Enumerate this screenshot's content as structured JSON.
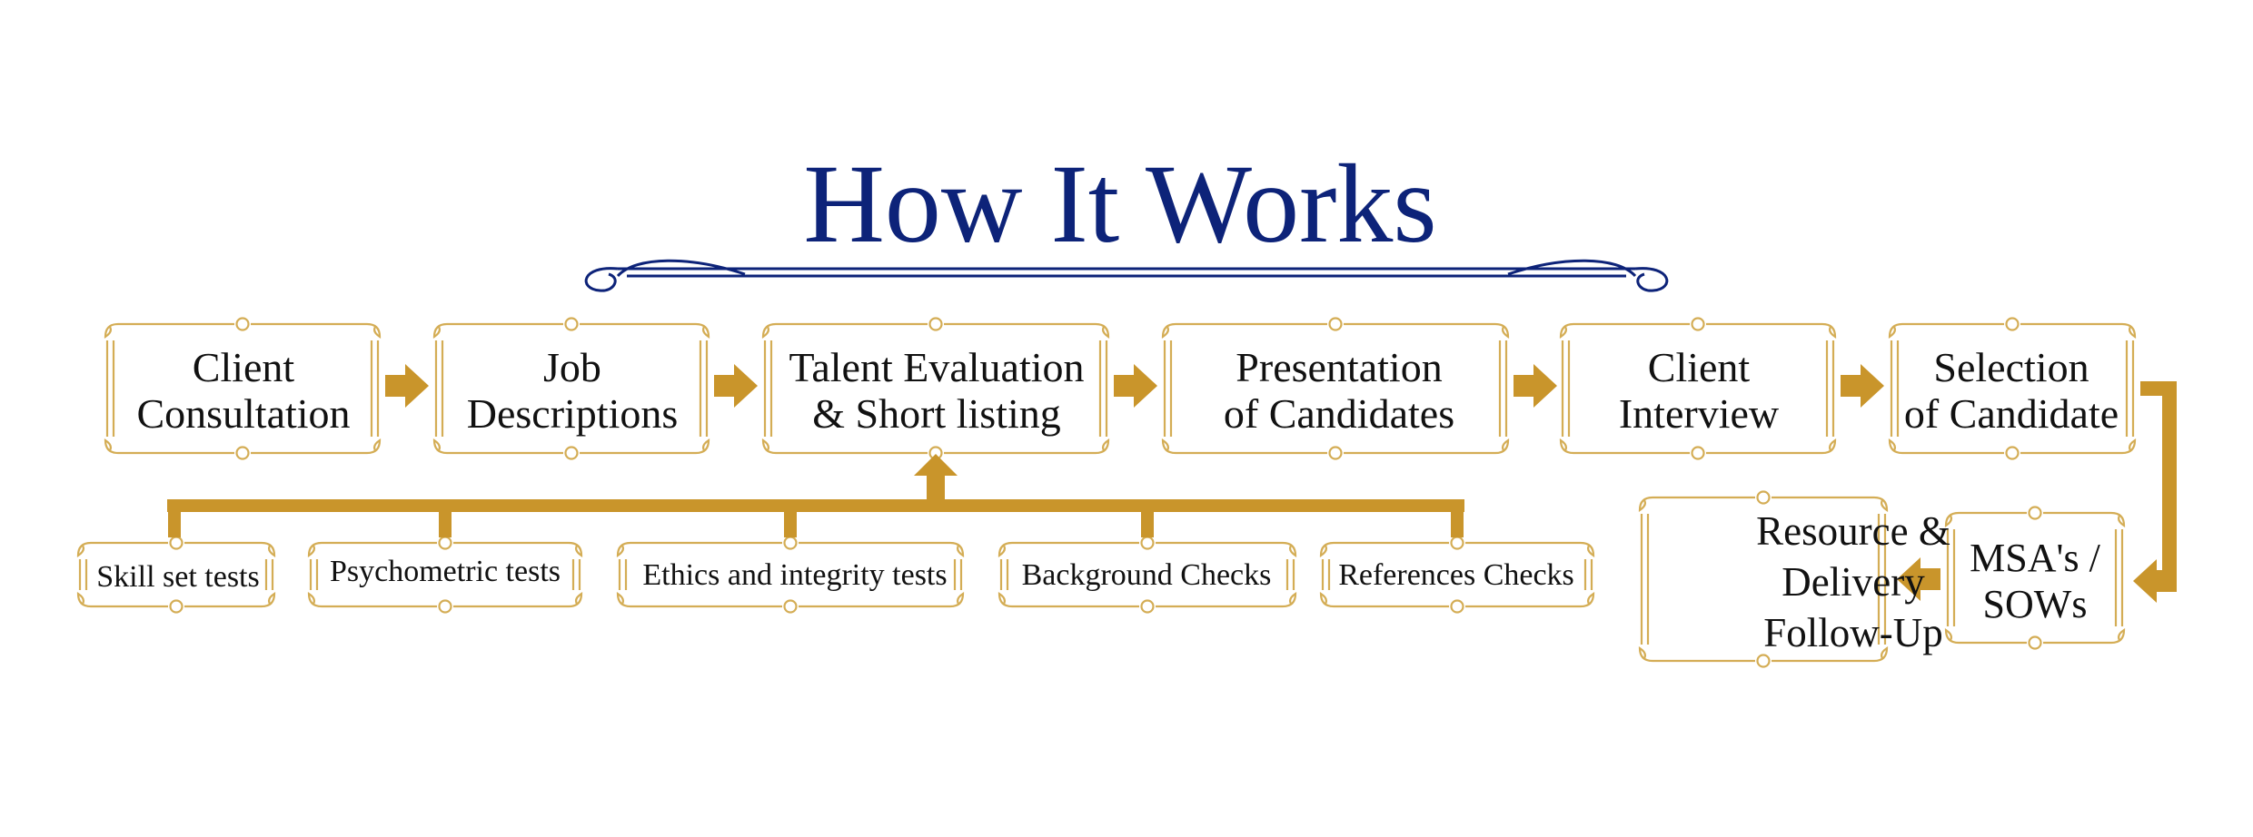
{
  "title": "How It Works",
  "steps": [
    "Client\nConsultation",
    "Job\nDescriptions",
    "Talent Evaluation\n& Short listing",
    "Presentation\nof Candidates",
    "Client\nInterview",
    "Selection\nof Candidate"
  ],
  "evaluation_tests": [
    "Skill set tests",
    "Psychometric tests",
    "Ethics and integrity tests",
    "Background Checks",
    "References Checks"
  ],
  "final_steps": {
    "msa": "MSA's /\nSOWs",
    "resource": "Resource &\nDelivery\nFollow-Up"
  },
  "colors": {
    "gold": "#c9952b",
    "gold_frame": "#d4ad55",
    "navy": "#0d2379",
    "text": "#111111"
  }
}
